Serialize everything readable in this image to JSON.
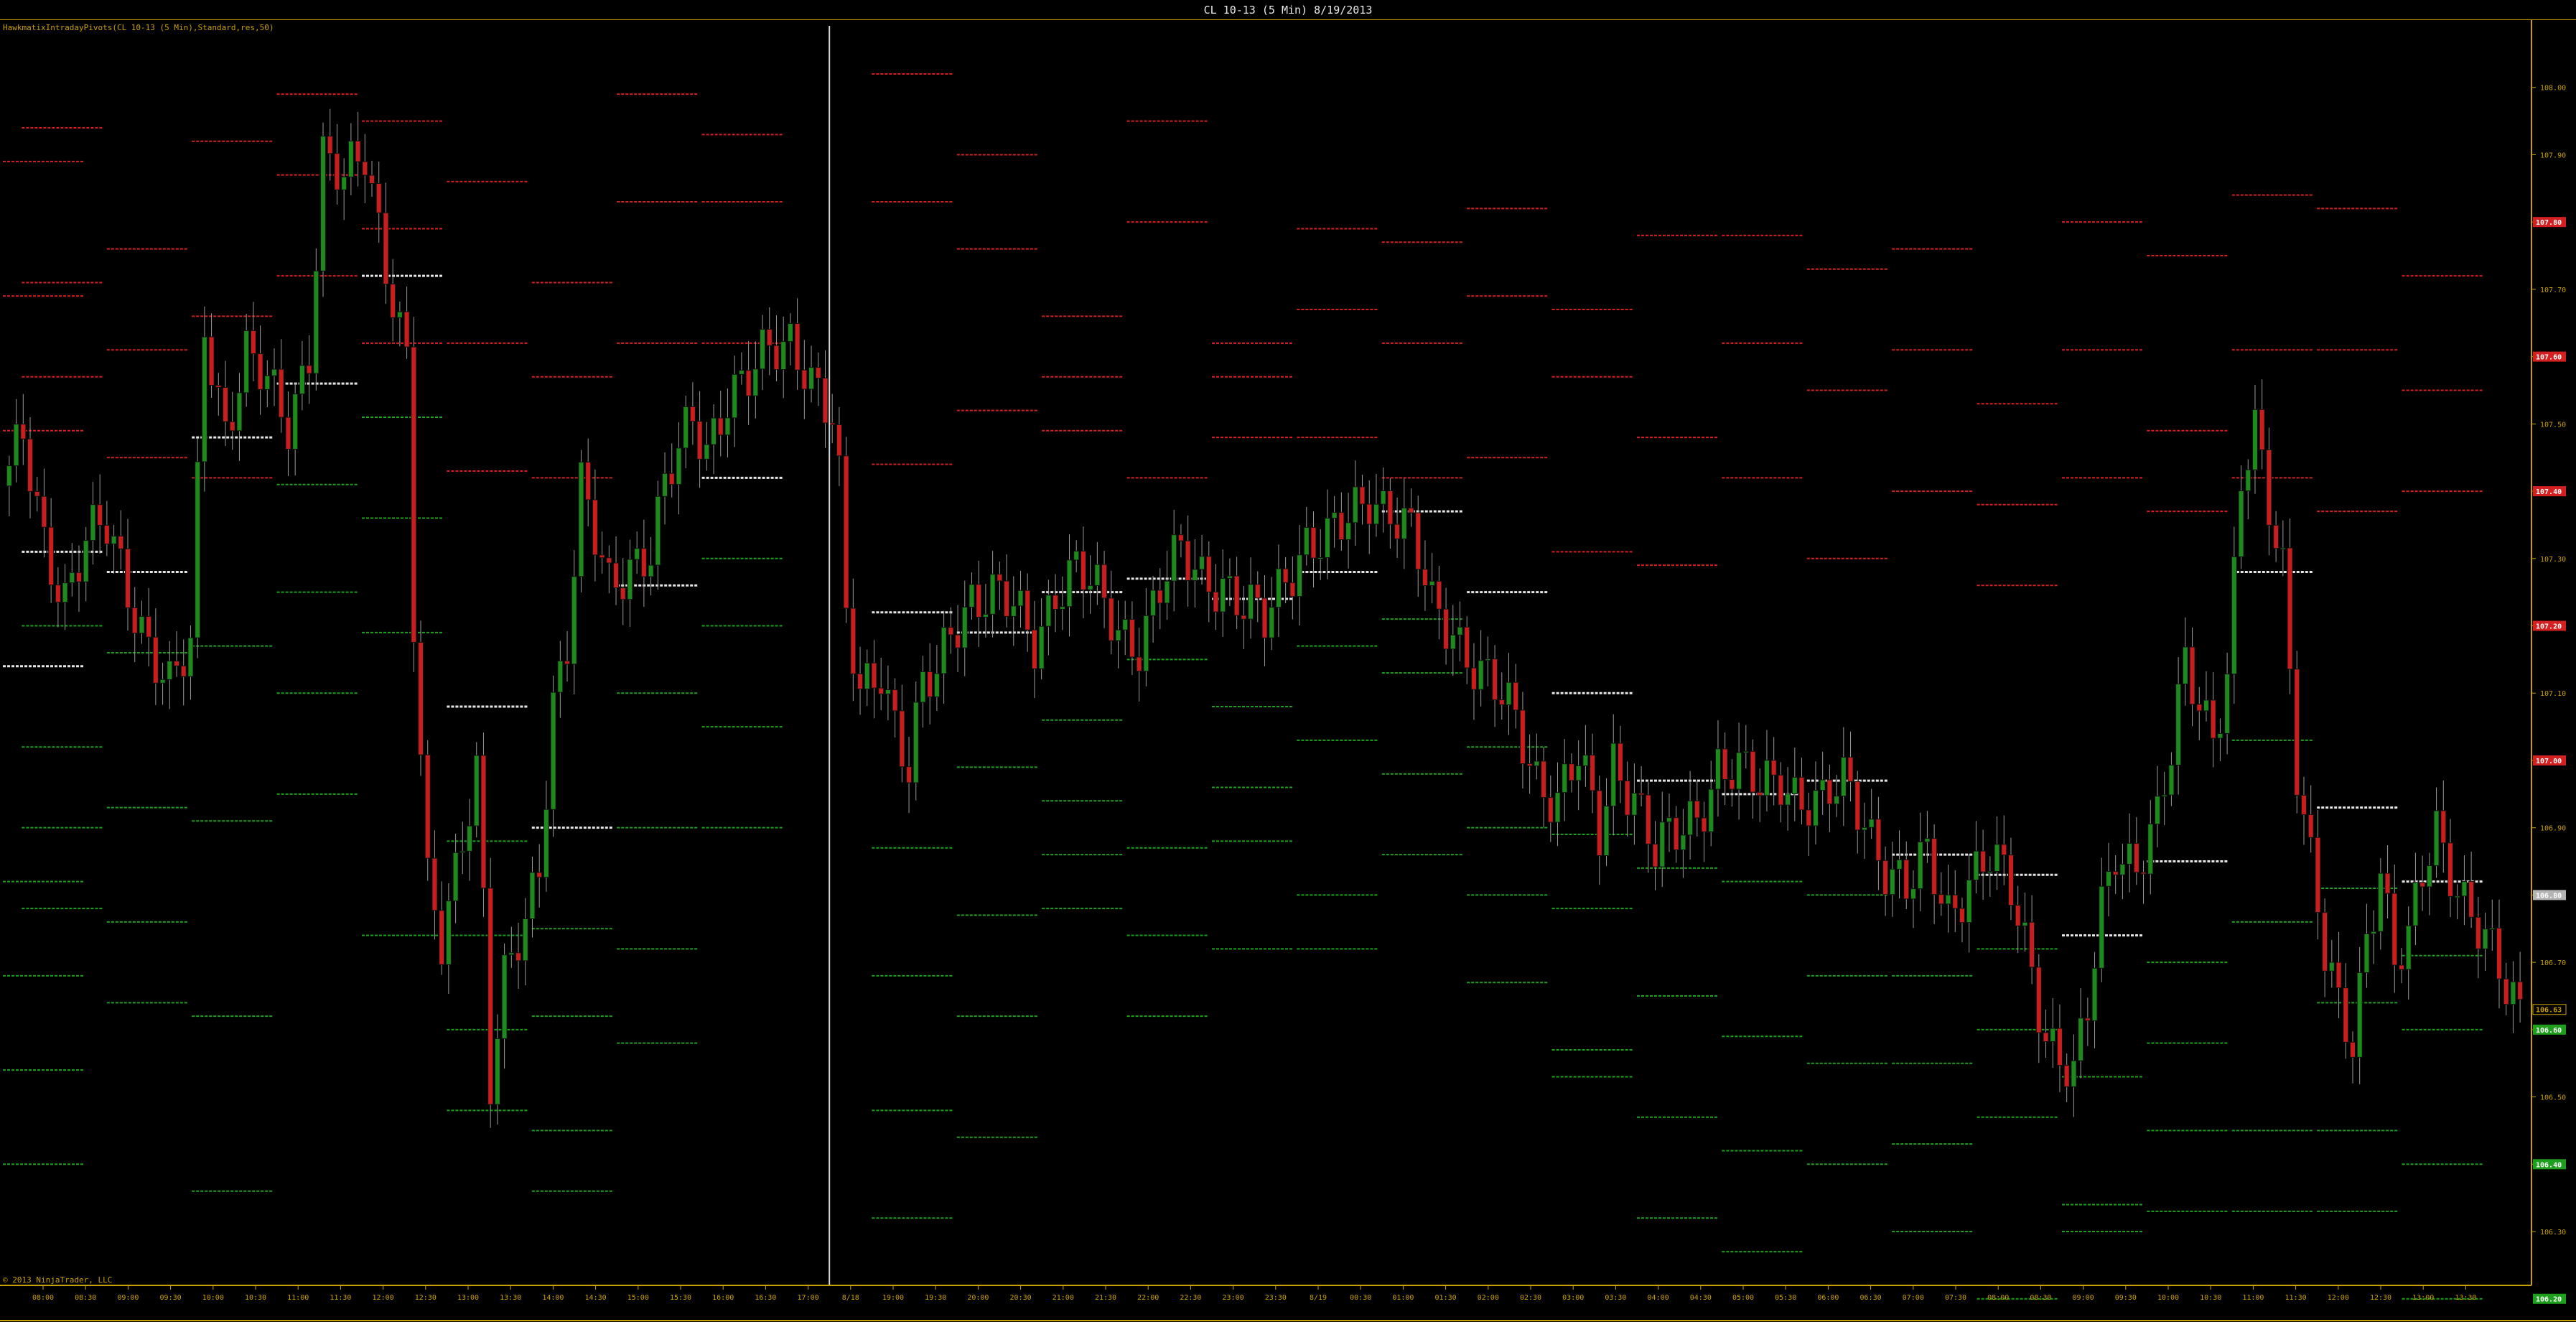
{
  "window": {
    "title": "CL 10-13 (5 Min)  8/19/2013"
  },
  "indicator_label": "HawkmatixIntradayPivots(CL 10-13 (5 Min),Standard,res,50)",
  "copyright": "© 2013 NinjaTrader, LLC",
  "colors": {
    "background": "#000000",
    "frame": "#c8a000",
    "text": "#c8a000",
    "up_candle": "#1e8a1e",
    "down_candle": "#c81e1e",
    "resistance": "#d42020",
    "support": "#1ea01e",
    "pivot": "#e6e6e6",
    "session_divider": "#d8d8d8"
  },
  "chart_data": {
    "type": "candlestick",
    "instrument": "CL 10-13",
    "interval": "5 Min",
    "date": "8/19/2013",
    "ylim": [
      106.22,
      108.1
    ],
    "y_ticks": [
      "106.30",
      "106.40",
      "106.50",
      "106.60",
      "106.70",
      "106.80",
      "106.90",
      "107.00",
      "107.10",
      "107.20",
      "107.30",
      "107.40",
      "107.50",
      "107.60",
      "107.70",
      "107.80",
      "107.90",
      "108.00"
    ],
    "highlighted_prices": [
      {
        "label": "107.80",
        "value": 107.8,
        "color": "#d42020"
      },
      {
        "label": "107.60",
        "value": 107.6,
        "color": "#d42020"
      },
      {
        "label": "107.40",
        "value": 107.4,
        "color": "#d42020"
      },
      {
        "label": "107.20",
        "value": 107.2,
        "color": "#d42020"
      },
      {
        "label": "107.00",
        "value": 107.0,
        "color": "#d42020"
      },
      {
        "label": "106.80",
        "value": 106.8,
        "color": "#b4b4b4"
      },
      {
        "label": "106.63",
        "value": 106.63,
        "color": "#000000"
      },
      {
        "label": "106.60",
        "value": 106.6,
        "color": "#1ea01e"
      },
      {
        "label": "106.40",
        "value": 106.4,
        "color": "#1ea01e"
      },
      {
        "label": "106.20",
        "value": 106.2,
        "color": "#1ea01e"
      }
    ],
    "x_labels": [
      "08:00",
      "08:30",
      "09:00",
      "09:30",
      "10:00",
      "10:30",
      "11:00",
      "11:30",
      "12:00",
      "12:30",
      "13:00",
      "13:30",
      "14:00",
      "14:30",
      "15:00",
      "15:30",
      "16:00",
      "16:30",
      "17:00",
      "8/18",
      "19:00",
      "19:30",
      "20:00",
      "20:30",
      "21:00",
      "21:30",
      "22:00",
      "22:30",
      "23:00",
      "23:30",
      "8/19",
      "00:30",
      "01:00",
      "01:30",
      "02:00",
      "02:30",
      "03:00",
      "03:30",
      "04:00",
      "04:30",
      "05:00",
      "05:30",
      "06:00",
      "06:30",
      "07:00",
      "07:30",
      "08:00",
      "08:30",
      "09:00",
      "09:30",
      "10:00",
      "10:30",
      "11:00",
      "11:30",
      "12:00",
      "12:30",
      "13:00",
      "13:30"
    ],
    "price_anchors": [
      [
        0,
        107.42
      ],
      [
        2,
        107.47
      ],
      [
        5,
        107.33
      ],
      [
        8,
        107.25
      ],
      [
        11,
        107.32
      ],
      [
        14,
        107.34
      ],
      [
        17,
        107.26
      ],
      [
        20,
        107.18
      ],
      [
        23,
        107.1
      ],
      [
        26,
        107.16
      ],
      [
        28,
        107.65
      ],
      [
        31,
        107.5
      ],
      [
        34,
        107.6
      ],
      [
        37,
        107.55
      ],
      [
        40,
        107.5
      ],
      [
        43,
        107.62
      ],
      [
        45,
        107.9
      ],
      [
        48,
        107.85
      ],
      [
        51,
        107.9
      ],
      [
        54,
        107.75
      ],
      [
        57,
        107.6
      ],
      [
        58,
        107.2
      ],
      [
        60,
        106.8
      ],
      [
        62,
        106.72
      ],
      [
        65,
        106.9
      ],
      [
        67,
        107.0
      ],
      [
        68,
        106.8
      ],
      [
        69,
        106.52
      ],
      [
        71,
        106.66
      ],
      [
        74,
        106.75
      ],
      [
        76,
        106.85
      ],
      [
        78,
        107.1
      ],
      [
        80,
        107.18
      ],
      [
        82,
        107.4
      ],
      [
        84,
        107.32
      ],
      [
        86,
        107.25
      ],
      [
        89,
        107.3
      ],
      [
        92,
        107.32
      ],
      [
        94,
        107.4
      ],
      [
        96,
        107.45
      ],
      [
        98,
        107.5
      ],
      [
        100,
        107.47
      ],
      [
        103,
        107.55
      ],
      [
        106,
        107.56
      ],
      [
        109,
        107.6
      ],
      [
        112,
        107.63
      ],
      [
        114,
        107.6
      ],
      [
        116,
        107.55
      ],
      [
        118,
        107.5
      ],
      [
        119,
        107.4
      ],
      [
        120,
        107.2
      ],
      [
        122,
        107.1
      ],
      [
        125,
        107.15
      ],
      [
        127,
        107.06
      ],
      [
        129,
        106.98
      ],
      [
        131,
        107.1
      ],
      [
        133,
        107.12
      ],
      [
        135,
        107.2
      ],
      [
        138,
        107.25
      ],
      [
        141,
        107.24
      ],
      [
        144,
        107.22
      ],
      [
        147,
        107.18
      ],
      [
        150,
        107.26
      ],
      [
        153,
        107.28
      ],
      [
        156,
        107.24
      ],
      [
        159,
        107.2
      ],
      [
        162,
        107.18
      ],
      [
        165,
        107.25
      ],
      [
        168,
        107.3
      ],
      [
        171,
        107.28
      ],
      [
        174,
        107.27
      ],
      [
        177,
        107.22
      ],
      [
        180,
        107.2
      ],
      [
        183,
        107.28
      ],
      [
        186,
        107.33
      ],
      [
        189,
        107.32
      ],
      [
        192,
        107.35
      ],
      [
        195,
        107.4
      ],
      [
        198,
        107.38
      ],
      [
        201,
        107.33
      ],
      [
        204,
        107.22
      ],
      [
        207,
        107.2
      ],
      [
        210,
        107.15
      ],
      [
        213,
        107.1
      ],
      [
        216,
        107.05
      ],
      [
        219,
        106.98
      ],
      [
        222,
        106.95
      ],
      [
        225,
        107.0
      ],
      [
        228,
        106.88
      ],
      [
        230,
        107.0
      ],
      [
        233,
        106.96
      ],
      [
        236,
        106.86
      ],
      [
        239,
        106.88
      ],
      [
        242,
        106.92
      ],
      [
        245,
        107.0
      ],
      [
        248,
        106.98
      ],
      [
        251,
        106.95
      ],
      [
        254,
        106.98
      ],
      [
        257,
        106.95
      ],
      [
        260,
        106.93
      ],
      [
        263,
        106.96
      ],
      [
        266,
        106.92
      ],
      [
        269,
        106.85
      ],
      [
        272,
        106.8
      ],
      [
        275,
        106.85
      ],
      [
        278,
        106.78
      ],
      [
        281,
        106.83
      ],
      [
        284,
        106.85
      ],
      [
        287,
        106.8
      ],
      [
        290,
        106.7
      ],
      [
        292,
        106.6
      ],
      [
        294,
        106.56
      ],
      [
        296,
        106.52
      ],
      [
        298,
        106.62
      ],
      [
        300,
        106.78
      ],
      [
        302,
        106.88
      ],
      [
        305,
        106.85
      ],
      [
        308,
        106.9
      ],
      [
        310,
        107.0
      ],
      [
        312,
        107.15
      ],
      [
        314,
        107.1
      ],
      [
        316,
        107.05
      ],
      [
        318,
        107.12
      ],
      [
        320,
        107.4
      ],
      [
        322,
        107.48
      ],
      [
        324,
        107.38
      ],
      [
        326,
        107.3
      ],
      [
        328,
        107.0
      ],
      [
        330,
        106.85
      ],
      [
        332,
        106.7
      ],
      [
        334,
        106.62
      ],
      [
        336,
        106.58
      ],
      [
        338,
        106.75
      ],
      [
        340,
        106.85
      ],
      [
        342,
        106.7
      ],
      [
        344,
        106.72
      ],
      [
        346,
        106.82
      ],
      [
        348,
        106.9
      ],
      [
        350,
        106.85
      ],
      [
        352,
        106.8
      ],
      [
        354,
        106.75
      ],
      [
        356,
        106.7
      ],
      [
        358,
        106.65
      ],
      [
        360,
        106.63
      ]
    ],
    "session_divider_x": "17:15",
    "pivot_levels": [
      {
        "from": "07:00",
        "to": "08:00",
        "R3": 107.89,
        "R2": 107.69,
        "R1": 107.49,
        "PP": 107.14,
        "S1": 106.82,
        "S2": 106.68,
        "S3": 106.54,
        "S4": 106.4
      },
      {
        "from": "08:00",
        "to": "09:00",
        "R3": 107.94,
        "R2": 107.71,
        "R1": 107.57,
        "PP": 107.31,
        "S1": 107.2,
        "S2": 107.02,
        "S3": 106.9,
        "S4": 106.78
      },
      {
        "from": "09:00",
        "to": "10:00",
        "R3": 107.76,
        "R2": 107.61,
        "R1": 107.45,
        "PP": 107.28,
        "S1": 107.16,
        "S2": 106.93,
        "S3": 106.76,
        "S4": 106.64
      },
      {
        "from": "10:00",
        "to": "11:00",
        "R3": 107.92,
        "R2": 107.66,
        "R1": 107.42,
        "PP": 107.48,
        "S1": 107.17,
        "S2": 106.91,
        "S3": 106.62,
        "S4": 106.36
      },
      {
        "from": "11:00",
        "to": "12:00",
        "R3": 107.99,
        "R2": 107.87,
        "R1": 107.72,
        "PP": 107.56,
        "S1": 107.41,
        "S2": 107.25,
        "S3": 107.1,
        "S4": 106.95
      },
      {
        "from": "12:00",
        "to": "13:00",
        "R3": 107.95,
        "R2": 107.79,
        "R1": 107.62,
        "PP": 107.72,
        "S1": 107.51,
        "S2": 107.36,
        "S3": 107.19,
        "S4": 106.74
      },
      {
        "from": "13:00",
        "to": "14:00",
        "R3": 107.86,
        "R2": 107.62,
        "R1": 107.43,
        "PP": 107.08,
        "S1": 106.88,
        "S2": 106.74,
        "S3": 106.6,
        "S4": 106.48
      },
      {
        "from": "14:00",
        "to": "15:00",
        "R3": 107.71,
        "R2": 107.57,
        "R1": 107.42,
        "PP": 106.9,
        "S1": 106.75,
        "S2": 106.62,
        "S3": 106.45,
        "S4": 106.36
      },
      {
        "from": "15:00",
        "to": "16:00",
        "R3": 107.99,
        "R2": 107.83,
        "R1": 107.62,
        "PP": 107.26,
        "S1": 107.1,
        "S2": 106.9,
        "S3": 106.72,
        "S4": 106.58
      },
      {
        "from": "16:00",
        "to": "17:00",
        "R3": 107.93,
        "R2": 107.83,
        "R1": 107.62,
        "PP": 107.42,
        "S1": 107.3,
        "S2": 107.2,
        "S3": 107.05,
        "S4": 106.9
      },
      {
        "from": "19:00",
        "to": "20:00",
        "R3": 108.02,
        "R2": 107.83,
        "R1": 107.44,
        "PP": 107.22,
        "S1": 106.87,
        "S2": 106.68,
        "S3": 106.48,
        "S4": 106.32
      },
      {
        "from": "20:00",
        "to": "21:00",
        "R3": 107.9,
        "R2": 107.76,
        "R1": 107.52,
        "PP": 107.19,
        "S1": 106.99,
        "S2": 106.77,
        "S3": 106.62,
        "S4": 106.44
      },
      {
        "from": "21:00",
        "to": "22:00",
        "R3": 107.66,
        "R2": 107.57,
        "R1": 107.49,
        "PP": 107.25,
        "S1": 107.06,
        "S2": 106.94,
        "S3": 106.86,
        "S4": 106.78
      },
      {
        "from": "22:00",
        "to": "23:00",
        "R3": 107.95,
        "R2": 107.8,
        "R1": 107.42,
        "PP": 107.27,
        "S1": 107.15,
        "S2": 106.87,
        "S3": 106.74,
        "S4": 106.62
      },
      {
        "from": "23:00",
        "to": "00:00",
        "R3": 107.62,
        "R2": 107.57,
        "R1": 107.48,
        "PP": 107.24,
        "S1": 107.08,
        "S2": 106.96,
        "S3": 106.88,
        "S4": 106.72
      },
      {
        "from": "00:00",
        "to": "01:00",
        "R3": 107.79,
        "R2": 107.67,
        "R1": 107.48,
        "PP": 107.28,
        "S1": 107.17,
        "S2": 107.03,
        "S3": 106.8,
        "S4": 106.72
      },
      {
        "from": "01:00",
        "to": "02:00",
        "R3": 107.77,
        "R2": 107.62,
        "R1": 107.42,
        "PP": 107.37,
        "S1": 107.21,
        "S2": 107.13,
        "S3": 106.98,
        "S4": 106.86
      },
      {
        "from": "02:00",
        "to": "03:00",
        "R3": 107.82,
        "R2": 107.69,
        "R1": 107.45,
        "PP": 107.25,
        "S1": 107.02,
        "S2": 106.9,
        "S3": 106.8,
        "S4": 106.67
      },
      {
        "from": "03:00",
        "to": "04:00",
        "R3": 107.67,
        "R2": 107.57,
        "R1": 107.31,
        "PP": 107.1,
        "S1": 106.89,
        "S2": 106.78,
        "S3": 106.57,
        "S4": 106.53
      },
      {
        "from": "04:00",
        "to": "05:00",
        "R3": 107.78,
        "R2": 107.48,
        "R1": 107.29,
        "PP": 106.97,
        "S1": 106.84,
        "S2": 106.65,
        "S3": 106.47,
        "S4": 106.32
      },
      {
        "from": "05:00",
        "to": "06:00",
        "R3": 107.78,
        "R2": 107.62,
        "R1": 107.42,
        "PP": 106.95,
        "S1": 106.82,
        "S2": 106.59,
        "S3": 106.42,
        "S4": 106.27
      },
      {
        "from": "06:00",
        "to": "07:00",
        "R3": 107.73,
        "R2": 107.55,
        "R1": 107.3,
        "PP": 106.97,
        "S1": 106.8,
        "S2": 106.68,
        "S3": 106.55,
        "S4": 106.4
      },
      {
        "from": "07:00",
        "to": "08:00",
        "R3": 107.76,
        "R2": 107.61,
        "R1": 107.4,
        "PP": 106.86,
        "S1": 106.68,
        "S2": 106.55,
        "S3": 106.43,
        "S4": 106.3
      },
      {
        "from": "08:00",
        "to": "09:00",
        "R3": 107.53,
        "R2": 107.38,
        "R1": 107.26,
        "PP": 106.83,
        "S1": 106.72,
        "S2": 106.6,
        "S3": 106.47,
        "S4": 106.2
      },
      {
        "from": "09:00",
        "to": "10:00",
        "R3": 107.8,
        "R2": 107.61,
        "R1": 107.42,
        "PP": 106.74,
        "S1": 106.53,
        "S2": 106.34,
        "S3": 106.3,
        "S4": 106.22
      },
      {
        "from": "10:00",
        "to": "11:00",
        "R3": 107.75,
        "R2": 107.49,
        "R1": 107.37,
        "PP": 106.85,
        "S1": 106.7,
        "S2": 106.58,
        "S3": 106.45,
        "S4": 106.33
      },
      {
        "from": "11:00",
        "to": "12:00",
        "R3": 107.84,
        "R2": 107.61,
        "R1": 107.42,
        "PP": 107.28,
        "S1": 107.03,
        "S2": 106.76,
        "S3": 106.45,
        "S4": 106.33
      },
      {
        "from": "12:00",
        "to": "13:00",
        "R3": 107.82,
        "R2": 107.61,
        "R1": 107.37,
        "PP": 106.93,
        "S1": 106.81,
        "S2": 106.64,
        "S3": 106.45,
        "S4": 106.33
      },
      {
        "from": "13:00",
        "to": "14:00",
        "R3": 107.72,
        "R2": 107.55,
        "R1": 107.4,
        "PP": 106.82,
        "S1": 106.71,
        "S2": 106.6,
        "S3": 106.4,
        "S4": 106.2
      }
    ]
  }
}
